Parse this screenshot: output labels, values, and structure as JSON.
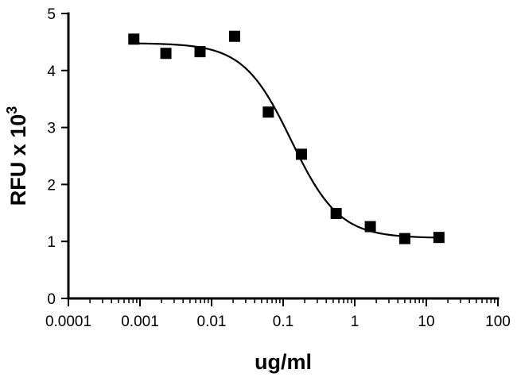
{
  "chart_data": {
    "type": "scatter",
    "xlabel": "ug/ml",
    "ylabel_main": "RFU x 10",
    "ylabel_exponent": "3",
    "xscale": "log",
    "xlim": [
      0.0001,
      100
    ],
    "ylim": [
      0,
      5
    ],
    "x_ticks": [
      0.0001,
      0.001,
      0.01,
      0.1,
      1,
      10,
      100
    ],
    "x_tick_labels": [
      "0.0001",
      "0.001",
      "0.01",
      "0.1",
      "1",
      "10",
      "100"
    ],
    "y_ticks": [
      0,
      1,
      2,
      3,
      4,
      5
    ],
    "y_tick_labels": [
      "0",
      "1",
      "2",
      "3",
      "4",
      "5"
    ],
    "grid": false,
    "marker": "filled-square",
    "points": [
      {
        "x": 0.00082,
        "y": 4.55
      },
      {
        "x": 0.0023,
        "y": 4.3
      },
      {
        "x": 0.0069,
        "y": 4.33
      },
      {
        "x": 0.021,
        "y": 4.6
      },
      {
        "x": 0.062,
        "y": 3.27
      },
      {
        "x": 0.18,
        "y": 2.53
      },
      {
        "x": 0.55,
        "y": 1.49
      },
      {
        "x": 1.65,
        "y": 1.26
      },
      {
        "x": 5.0,
        "y": 1.05
      },
      {
        "x": 15.0,
        "y": 1.07
      }
    ],
    "fit_curve": {
      "model": "four-parameter logistic",
      "top": 4.48,
      "bottom": 1.06,
      "ec50": 0.13,
      "hill_slope": 1.3
    }
  }
}
